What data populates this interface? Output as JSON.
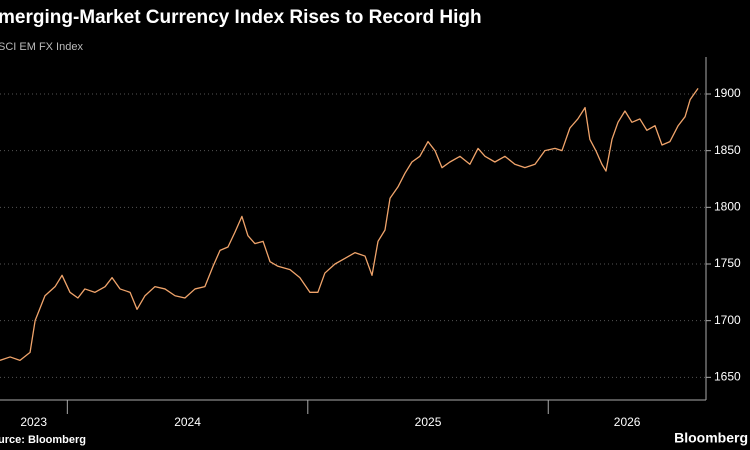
{
  "chart_data": {
    "type": "line",
    "title": "merging-Market Currency Index Rises to Record High",
    "subtitle": "SCI EM FX Index",
    "source": "urce: Bloomberg",
    "brand": "Bloomberg",
    "xlim": [
      2023.72,
      2026.656
    ],
    "xticks": [
      2023,
      2024,
      2025,
      2026
    ],
    "ylim": [
      1630,
      1915
    ],
    "yticks": [
      1650,
      1700,
      1750,
      1800,
      1850,
      1900
    ],
    "grid": true,
    "series": [
      {
        "color": "#f0a46b",
        "x": [
          2023.72,
          2023.762,
          2023.803,
          2023.845,
          2023.866,
          2023.907,
          2023.949,
          2023.978,
          2024.011,
          2024.044,
          2024.073,
          2024.115,
          2024.157,
          2024.186,
          2024.219,
          2024.261,
          2024.29,
          2024.323,
          2024.364,
          2024.406,
          2024.448,
          2024.489,
          2024.531,
          2024.572,
          2024.606,
          2024.635,
          2024.668,
          2024.697,
          2024.726,
          2024.751,
          2024.78,
          2024.814,
          2024.843,
          2024.876,
          2024.926,
          2024.967,
          2025.009,
          2025.042,
          2025.071,
          2025.113,
          2025.155,
          2025.196,
          2025.238,
          2025.267,
          2025.292,
          2025.321,
          2025.342,
          2025.375,
          2025.404,
          2025.433,
          2025.466,
          2025.5,
          2025.529,
          2025.558,
          2025.591,
          2025.633,
          2025.674,
          2025.708,
          2025.737,
          2025.778,
          2025.82,
          2025.861,
          2025.903,
          2025.945,
          2025.986,
          2026.028,
          2026.057,
          2026.09,
          2026.123,
          2026.153,
          2026.173,
          2026.198,
          2026.223,
          2026.24,
          2026.265,
          2026.29,
          2026.319,
          2026.348,
          2026.381,
          2026.41,
          2026.444,
          2026.473,
          2026.506,
          2026.54,
          2026.569,
          2026.59,
          2026.623
        ],
        "values": [
          1665,
          1668,
          1665,
          1672,
          1700,
          1722,
          1730,
          1740,
          1725,
          1720,
          1728,
          1725,
          1730,
          1738,
          1728,
          1725,
          1710,
          1722,
          1730,
          1728,
          1722,
          1720,
          1728,
          1730,
          1748,
          1762,
          1765,
          1778,
          1792,
          1775,
          1768,
          1770,
          1752,
          1748,
          1745,
          1738,
          1725,
          1725,
          1742,
          1750,
          1755,
          1760,
          1757,
          1740,
          1770,
          1780,
          1808,
          1818,
          1830,
          1840,
          1845,
          1858,
          1850,
          1835,
          1840,
          1845,
          1838,
          1852,
          1845,
          1840,
          1845,
          1838,
          1835,
          1838,
          1850,
          1852,
          1850,
          1870,
          1878,
          1888,
          1860,
          1850,
          1838,
          1832,
          1860,
          1875,
          1885,
          1875,
          1878,
          1868,
          1872,
          1855,
          1858,
          1872,
          1880,
          1895,
          1905
        ]
      }
    ]
  }
}
